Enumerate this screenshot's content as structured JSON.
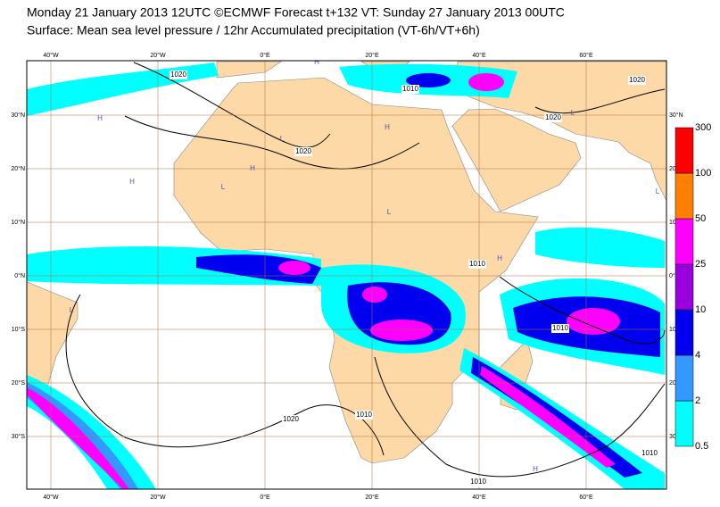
{
  "map": {
    "title": "Monday 21 January 2013 12UTC ©ECMWF Forecast t+132 VT: Sunday 27 January 2013 00UTC",
    "subtitle": "Surface: Mean sea level pressure / 12hr Accumulated precipitation (VT-6h/VT+6h)",
    "lon_ticks": [
      {
        "value": -40,
        "label": "40°W"
      },
      {
        "value": -20,
        "label": "20°W"
      },
      {
        "value": 0,
        "label": "0°E"
      },
      {
        "value": 20,
        "label": "20°E"
      },
      {
        "value": 40,
        "label": "40°E"
      },
      {
        "value": 60,
        "label": "60°E"
      }
    ],
    "lat_ticks": [
      {
        "value": 30,
        "label": "30°N"
      },
      {
        "value": 20,
        "label": "20°N"
      },
      {
        "value": 10,
        "label": "10°N"
      },
      {
        "value": 0,
        "label": "0°N"
      },
      {
        "value": -10,
        "label": "10°S"
      },
      {
        "value": -20,
        "label": "20°S"
      },
      {
        "value": -30,
        "label": "30°S"
      }
    ],
    "isobar_labels": [
      "1020",
      "1020",
      "1020",
      "1020",
      "1020",
      "1010",
      "1010",
      "1010",
      "1010",
      "1010",
      "1010"
    ],
    "pressure_centers": [
      "H",
      "H",
      "H",
      "H",
      "H",
      "H",
      "H",
      "L",
      "L",
      "L",
      "L",
      "L",
      "L"
    ],
    "colorbar": {
      "levels": [
        0.5,
        2,
        4,
        10,
        25,
        50,
        100,
        300
      ],
      "colors": [
        "#00ffff",
        "#3399ff",
        "#0000ee",
        "#9900dd",
        "#ff00ff",
        "#ff8000",
        "#ff0000"
      ]
    }
  }
}
